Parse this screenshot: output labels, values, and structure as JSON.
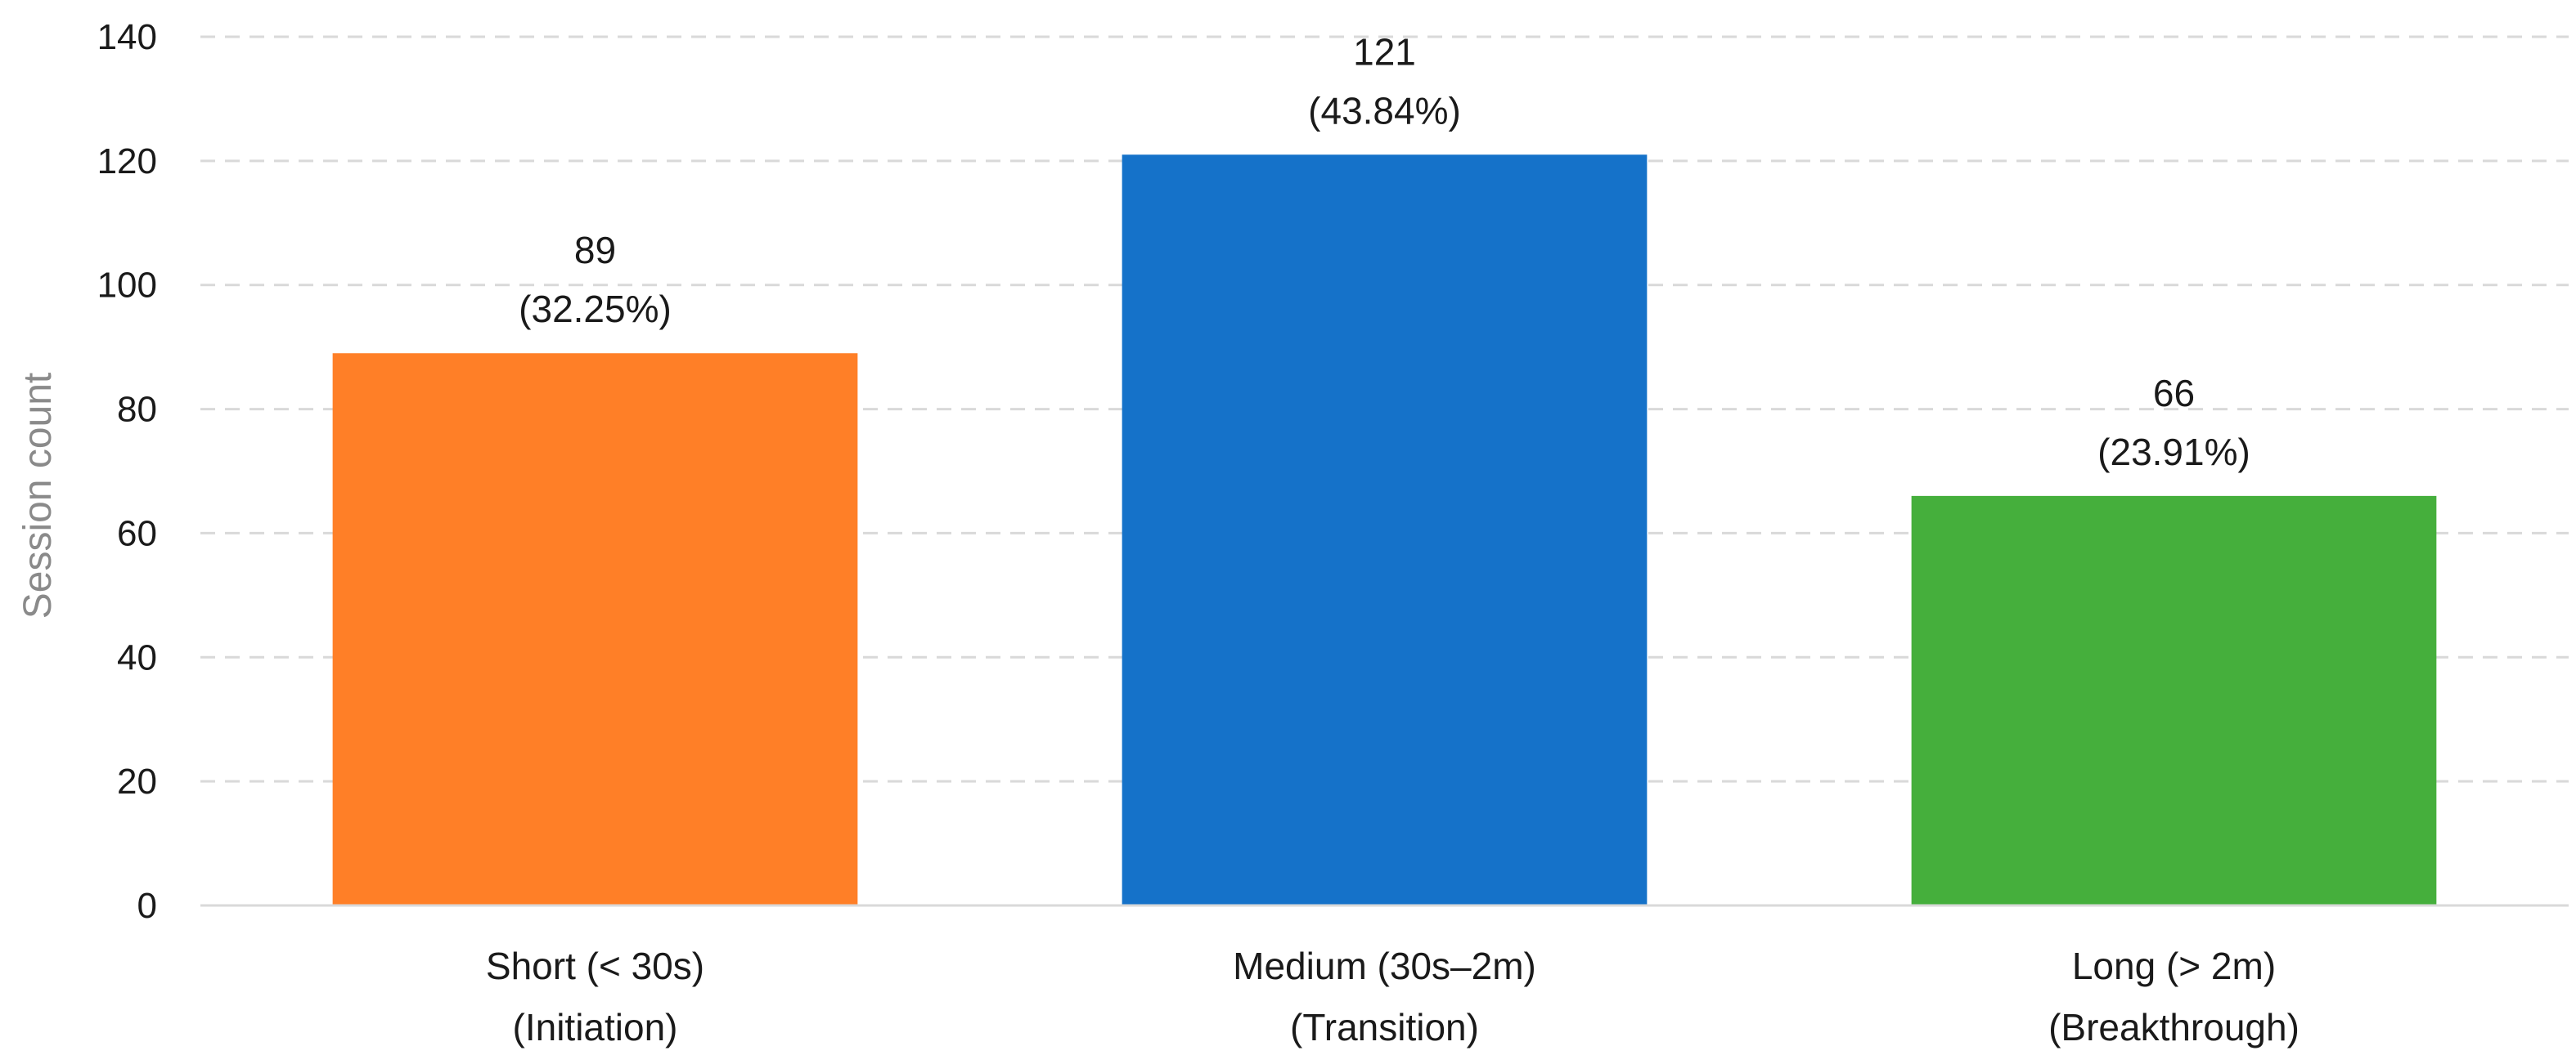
{
  "chart_data": {
    "type": "bar",
    "title": "",
    "xlabel": "",
    "ylabel": "Session count",
    "ylim": [
      0,
      140
    ],
    "yticks": [
      0,
      20,
      40,
      60,
      80,
      100,
      120,
      140
    ],
    "grid": true,
    "legend": "none",
    "categories": [
      [
        "Short (< 30s)",
        "(Initiation)"
      ],
      [
        "Medium (30s–2m)",
        "(Transition)"
      ],
      [
        "Long (> 2m)",
        "(Breakthrough)"
      ]
    ],
    "values": [
      89,
      121,
      66
    ],
    "data_labels": [
      [
        "89",
        "(32.25%)"
      ],
      [
        "121",
        "(43.84%)"
      ],
      [
        "66",
        "(23.91%)"
      ]
    ],
    "colors": [
      "#FF7F27",
      "#1572C9",
      "#45AF3C"
    ],
    "grid_color": "#D9D9D9",
    "axis_color": "#D9D9D9"
  }
}
